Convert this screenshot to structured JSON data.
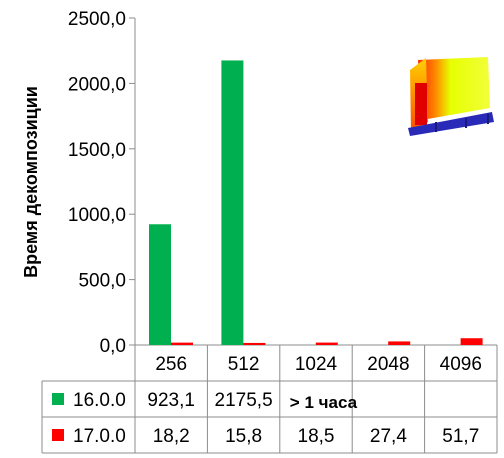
{
  "chart_data": {
    "type": "bar",
    "title": "",
    "xlabel": "",
    "ylabel": "Время декомпозиции",
    "ylim": [
      0,
      2500
    ],
    "yticks": [
      "0,0",
      "500,0",
      "1000,0",
      "1500,0",
      "2000,0",
      "2500,0"
    ],
    "ytick_values": [
      0,
      500,
      1000,
      1500,
      2000,
      2500
    ],
    "categories": [
      "256",
      "512",
      "1024",
      "2048",
      "4096"
    ],
    "series": [
      {
        "name": "16.0.0",
        "color": "#00b050",
        "values": [
          923.1,
          2175.5,
          null,
          null,
          null
        ],
        "labels": [
          "923,1",
          "2175,5"
        ]
      },
      {
        "name": "17.0.0",
        "color": "#ff0000",
        "values": [
          18.2,
          15.8,
          18.5,
          27.4,
          51.7
        ],
        "labels": [
          "18,2",
          "15,8",
          "18,5",
          "27,4",
          "51,7"
        ]
      }
    ],
    "table_note": "> 1 часа",
    "grid": false,
    "legend": "data table"
  },
  "icons": {
    "inset": "thermal-model-thumbnail"
  }
}
